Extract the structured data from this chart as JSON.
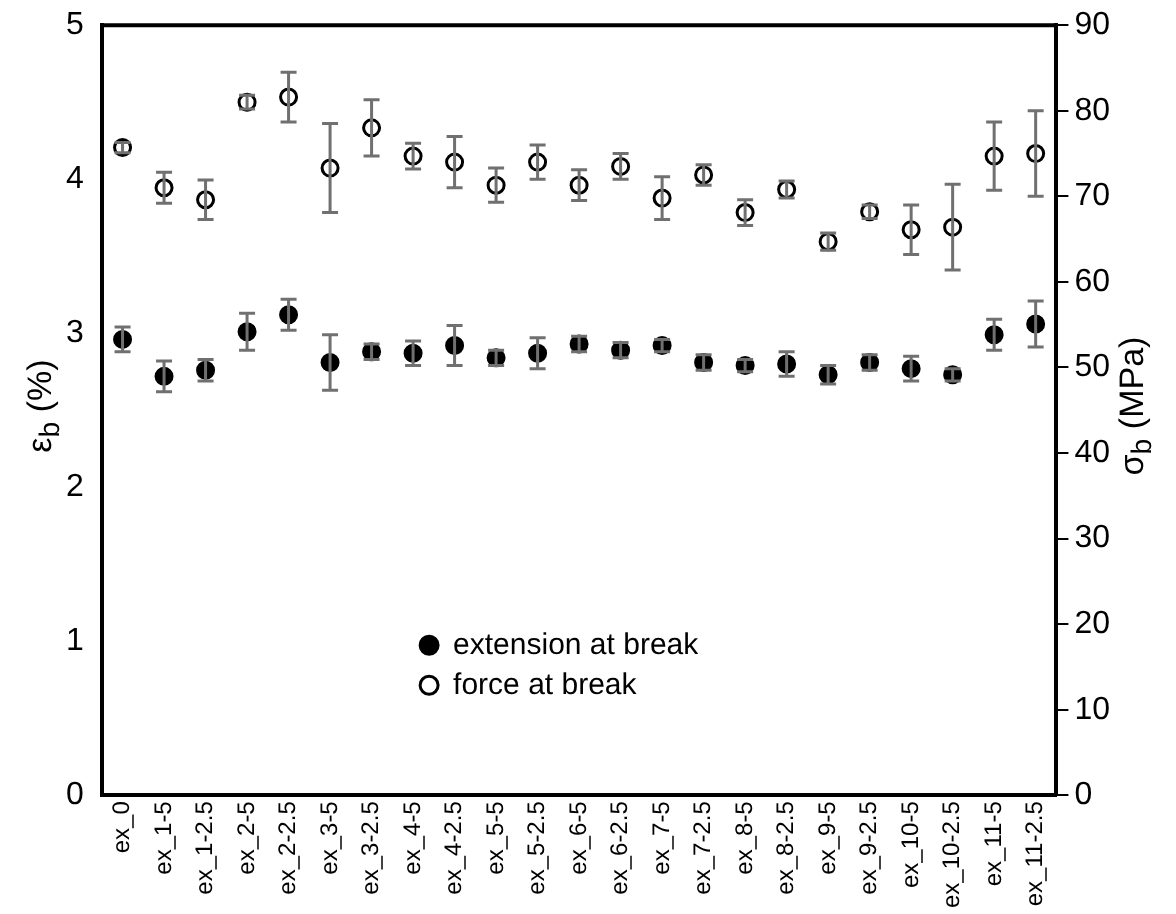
{
  "chart_data": {
    "type": "scatter",
    "categories": [
      "ex_0",
      "ex_1-5",
      "ex_1-2.5",
      "ex_2-5",
      "ex_2-2.5",
      "ex_3-5",
      "ex_3-2.5",
      "ex_4-5",
      "ex_4-2.5",
      "ex_5-5",
      "ex_5-2.5",
      "ex_6-5",
      "ex_6-2.5",
      "ex_7-5",
      "ex_7-2.5",
      "ex_8-5",
      "ex_8-2.5",
      "ex_9-5",
      "ex_9-2.5",
      "ex_10-5",
      "ex_10-2.5",
      "ex_11-5",
      "ex_11-2.5"
    ],
    "series": [
      {
        "name": "extension at break",
        "color": "#000000",
        "values": [
          2.96,
          2.72,
          2.76,
          3.01,
          3.12,
          2.81,
          2.88,
          2.87,
          2.92,
          2.84,
          2.87,
          2.93,
          2.89,
          2.92,
          2.81,
          2.79,
          2.8,
          2.73,
          2.81,
          2.77,
          2.73,
          2.99,
          3.06
        ],
        "errors": [
          0.08,
          0.1,
          0.07,
          0.12,
          0.1,
          0.18,
          0.05,
          0.08,
          0.13,
          0.05,
          0.1,
          0.05,
          0.05,
          0.04,
          0.05,
          0.04,
          0.08,
          0.06,
          0.05,
          0.08,
          0.04,
          0.1,
          0.15
        ]
      },
      {
        "name": "force at break",
        "color": "#000000",
        "axis": "y2",
        "values": [
          75.7,
          71,
          69.6,
          81,
          81.6,
          73.3,
          78,
          74.7,
          74,
          71.3,
          74,
          71.3,
          73.5,
          69.8,
          72.5,
          68.1,
          70.8,
          64.7,
          68.2,
          66.1,
          66.4,
          74.7,
          75
        ],
        "errors": [
          0.6,
          1.8,
          2.3,
          0.8,
          2.9,
          5.2,
          3.3,
          1.5,
          3,
          2,
          2,
          1.8,
          1.5,
          2.5,
          1.2,
          1.5,
          1,
          1,
          0.8,
          2.9,
          5,
          4,
          5
        ]
      }
    ],
    "ylabel": "ε$_{b}$ (%)",
    "y2label": "σ$_{b}$ (MPa)",
    "ylim": [
      0,
      5
    ],
    "yticks": [
      0,
      1,
      2,
      3,
      4,
      5
    ],
    "y2lim": [
      0,
      90
    ],
    "y2ticks": [
      0,
      10,
      20,
      30,
      40,
      50,
      60,
      70,
      80,
      90
    ],
    "grid": false,
    "legend": "bottom",
    "marker": "circle"
  }
}
